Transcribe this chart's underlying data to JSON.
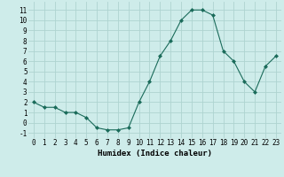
{
  "x": [
    0,
    1,
    2,
    3,
    4,
    5,
    6,
    7,
    8,
    9,
    10,
    11,
    12,
    13,
    14,
    15,
    16,
    17,
    18,
    19,
    20,
    21,
    22,
    23
  ],
  "y": [
    2,
    1.5,
    1.5,
    1,
    1,
    0.5,
    -0.5,
    -0.7,
    -0.7,
    -0.5,
    2,
    4,
    6.5,
    8,
    10,
    11,
    11,
    10.5,
    7,
    6,
    4,
    3,
    5.5,
    6.5
  ],
  "line_color": "#1a6b5a",
  "marker": "D",
  "marker_size": 2,
  "bg_color": "#ceecea",
  "grid_color": "#aed4d0",
  "xlabel": "Humidex (Indice chaleur)",
  "ylim": [
    -1.5,
    11.8
  ],
  "xlim": [
    -0.5,
    23.5
  ],
  "yticks": [
    -1,
    0,
    1,
    2,
    3,
    4,
    5,
    6,
    7,
    8,
    9,
    10,
    11
  ],
  "xticks": [
    0,
    1,
    2,
    3,
    4,
    5,
    6,
    7,
    8,
    9,
    10,
    11,
    12,
    13,
    14,
    15,
    16,
    17,
    18,
    19,
    20,
    21,
    22,
    23
  ],
  "tick_fontsize": 5.5,
  "xlabel_fontsize": 6.5
}
